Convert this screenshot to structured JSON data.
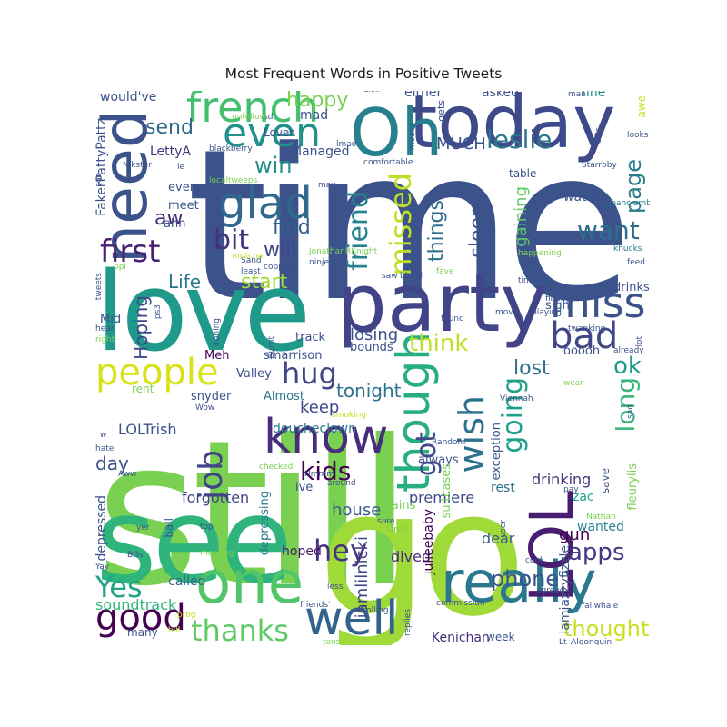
{
  "chart_data": {
    "type": "wordcloud",
    "title": "Most Frequent Words in Positive Tweets",
    "colormap": "viridis",
    "words": [
      {
        "text": "time",
        "color": "#3b528b"
      },
      {
        "text": "still",
        "color": "#7ad151"
      },
      {
        "text": "go",
        "color": "#a0da39"
      },
      {
        "text": "see",
        "color": "#2fb47c"
      },
      {
        "text": "love",
        "color": "#1f9a8a"
      },
      {
        "text": "party",
        "color": "#414487"
      },
      {
        "text": "today",
        "color": "#3e4a89"
      },
      {
        "text": "Oh",
        "color": "#27808e"
      },
      {
        "text": "need",
        "color": "#3b528b"
      },
      {
        "text": "one",
        "color": "#52c569"
      },
      {
        "text": "really",
        "color": "#2a788e"
      },
      {
        "text": "well",
        "color": "#33638d"
      },
      {
        "text": "LOL",
        "color": "#481f70"
      },
      {
        "text": "know",
        "color": "#472d7b"
      },
      {
        "text": "though",
        "color": "#27ad81"
      },
      {
        "text": "french",
        "color": "#44bf70"
      },
      {
        "text": "glad",
        "color": "#31688e"
      },
      {
        "text": "even",
        "color": "#21918c"
      },
      {
        "text": "people",
        "color": "#d8e219"
      },
      {
        "text": "miss",
        "color": "#3b528b"
      },
      {
        "text": "bad",
        "color": "#404688"
      },
      {
        "text": "first",
        "color": "#482173"
      },
      {
        "text": "good",
        "color": "#440154"
      },
      {
        "text": "job",
        "color": "#414487"
      },
      {
        "text": "wish",
        "color": "#2c728e"
      },
      {
        "text": "hug",
        "color": "#404688"
      },
      {
        "text": "thanks",
        "color": "#5ec962"
      },
      {
        "text": "Yes",
        "color": "#20a386"
      },
      {
        "text": "hey",
        "color": "#46327e"
      },
      {
        "text": "got",
        "color": "#3e4989"
      },
      {
        "text": "going",
        "color": "#1fa088"
      },
      {
        "text": "bit",
        "color": "#46307e"
      },
      {
        "text": "missed",
        "color": "#bddf26"
      },
      {
        "text": "friend",
        "color": "#26828e"
      },
      {
        "text": "think",
        "color": "#bddf26"
      },
      {
        "text": "kids",
        "color": "#440154"
      },
      {
        "text": "leslie",
        "color": "#2a788e"
      },
      {
        "text": "want",
        "color": "#2e6f8e"
      },
      {
        "text": "long",
        "color": "#35b779"
      },
      {
        "text": "apps",
        "color": "#443a83"
      },
      {
        "text": "ok",
        "color": "#1e9c89"
      },
      {
        "text": "phone",
        "color": "#3b528b"
      },
      {
        "text": "thought",
        "color": "#c8e020"
      },
      {
        "text": "page",
        "color": "#287d8e"
      },
      {
        "text": "happy",
        "color": "#7ad151"
      },
      {
        "text": "win",
        "color": "#21918c"
      },
      {
        "text": "things",
        "color": "#2e6e8e"
      },
      {
        "text": "sleep",
        "color": "#3a538b"
      },
      {
        "text": "will",
        "color": "#3f4788"
      },
      {
        "text": "find",
        "color": "#355e8d"
      },
      {
        "text": "start",
        "color": "#a0da39"
      },
      {
        "text": "send",
        "color": "#31688e"
      },
      {
        "text": "aw",
        "color": "#472d7b"
      },
      {
        "text": "Hoping",
        "color": "#3e4989"
      },
      {
        "text": "MUCH",
        "color": "#3b528b"
      },
      {
        "text": "lost",
        "color": "#2d708e"
      },
      {
        "text": "tonight",
        "color": "#2c728e"
      },
      {
        "text": "day",
        "color": "#3b528b"
      },
      {
        "text": "Life",
        "color": "#2a788e"
      },
      {
        "text": "gaining",
        "color": "#5ec962"
      },
      {
        "text": "losing",
        "color": "#3b528b"
      },
      {
        "text": "keep",
        "color": "#3e4a89"
      },
      {
        "text": "house",
        "color": "#355e8d"
      },
      {
        "text": "soundtrack",
        "color": "#2fb47c"
      },
      {
        "text": "forgotten",
        "color": "#414487"
      },
      {
        "text": "LOLTrish",
        "color": "#3b528b"
      },
      {
        "text": "gun",
        "color": "#440154"
      },
      {
        "text": "iamlilnicki",
        "color": "#404688"
      },
      {
        "text": "dived",
        "color": "#472d7b"
      },
      {
        "text": "dear",
        "color": "#35608d"
      },
      {
        "text": "hoped",
        "color": "#481b6d"
      },
      {
        "text": "Kenichan",
        "color": "#46307e"
      },
      {
        "text": "called",
        "color": "#33638d"
      },
      {
        "text": "rest",
        "color": "#2d708e"
      },
      {
        "text": "drinking",
        "color": "#46337f"
      },
      {
        "text": "premiere",
        "color": "#3e4a89"
      },
      {
        "text": "wanted",
        "color": "#25848e"
      },
      {
        "text": "zac",
        "color": "#20a486"
      },
      {
        "text": "watch",
        "color": "#3b528b"
      },
      {
        "text": "would've",
        "color": "#3b528b"
      },
      {
        "text": "either",
        "color": "#3b528b"
      },
      {
        "text": "asked",
        "color": "#3b528b"
      },
      {
        "text": "fine",
        "color": "#21918c"
      },
      {
        "text": "mad",
        "color": "#3b528b"
      },
      {
        "text": "Managed",
        "color": "#3b528b"
      },
      {
        "text": "Lover.",
        "color": "#3b528b"
      },
      {
        "text": "LettyA",
        "color": "#46337f"
      },
      {
        "text": "FakerPattyPattz",
        "color": "#3b528b"
      },
      {
        "text": "every",
        "color": "#3b528b"
      },
      {
        "text": "meet",
        "color": "#3b528b"
      },
      {
        "text": "ahh",
        "color": "#3b528b"
      },
      {
        "text": "Mid",
        "color": "#3b528b"
      },
      {
        "text": "Meh",
        "color": "#440154"
      },
      {
        "text": "Valley",
        "color": "#3b528b"
      },
      {
        "text": "smarrison",
        "color": "#3b528b"
      },
      {
        "text": "bounds",
        "color": "#3b528b"
      },
      {
        "text": "track",
        "color": "#3b528b"
      },
      {
        "text": "snyder",
        "color": "#3b528b"
      },
      {
        "text": "Almost",
        "color": "#2a788e"
      },
      {
        "text": "doucheclown",
        "color": "#2a788e"
      },
      {
        "text": "ive",
        "color": "#3b528b"
      },
      {
        "text": "always",
        "color": "#3b528b"
      },
      {
        "text": "exception",
        "color": "#3b528b"
      },
      {
        "text": "suitcases",
        "color": "#7ad151"
      },
      {
        "text": "julieebaby",
        "color": "#440154"
      },
      {
        "text": "Rains",
        "color": "#7ad151"
      },
      {
        "text": "depressed",
        "color": "#3b528b"
      },
      {
        "text": "depressing",
        "color": "#2a788e"
      },
      {
        "text": "iamjazzyfizzle",
        "color": "#3b528b"
      },
      {
        "text": "fleurylis",
        "color": "#7ad151"
      },
      {
        "text": "drinks",
        "color": "#3b528b"
      },
      {
        "text": "sigh",
        "color": "#3b528b"
      },
      {
        "text": "ooooh",
        "color": "#3b528b"
      },
      {
        "text": "save",
        "color": "#3b528b"
      },
      {
        "text": "week",
        "color": "#3b528b"
      },
      {
        "text": "many",
        "color": "#3b528b"
      },
      {
        "text": "ball",
        "color": "#3b528b"
      },
      {
        "text": "rent",
        "color": "#7ad151"
      },
      {
        "text": "gets",
        "color": "#3b528b"
      },
      {
        "text": "table",
        "color": "#3b528b"
      },
      {
        "text": "awe",
        "color": "#c8e020"
      },
      {
        "text": "alllll",
        "color": "#3b528b"
      },
      {
        "text": "sd",
        "color": "#3b528b"
      },
      {
        "text": "unfollow",
        "color": "#7ad151"
      },
      {
        "text": "lmao",
        "color": "#3b528b"
      },
      {
        "text": "means",
        "color": "#3b528b"
      },
      {
        "text": "man",
        "color": "#3b528b"
      },
      {
        "text": "looks",
        "color": "#3b528b"
      },
      {
        "text": "Nikster",
        "color": "#3b528b"
      },
      {
        "text": "comfortable",
        "color": "#3b528b"
      },
      {
        "text": "Starrbby",
        "color": "#3b528b"
      },
      {
        "text": "jeancjumbe",
        "color": "#2a788e"
      },
      {
        "text": "khucks",
        "color": "#2a788e"
      },
      {
        "text": "happening",
        "color": "#7ad151"
      },
      {
        "text": "feed",
        "color": "#3b528b"
      },
      {
        "text": "blackberry",
        "color": "#3b528b"
      },
      {
        "text": "localtweeps",
        "color": "#7ad151"
      },
      {
        "text": "may",
        "color": "#3b528b"
      },
      {
        "text": "soo",
        "color": "#3b528b"
      },
      {
        "text": "copped",
        "color": "#3b528b"
      },
      {
        "text": "JonathanRKnight",
        "color": "#7ad151"
      },
      {
        "text": "ninjen",
        "color": "#3b528b"
      },
      {
        "text": "Sand",
        "color": "#3b528b"
      },
      {
        "text": "least",
        "color": "#3b528b"
      },
      {
        "text": "saw",
        "color": "#3b528b"
      },
      {
        "text": "blood",
        "color": "#3b528b"
      },
      {
        "text": "fave",
        "color": "#7ad151"
      },
      {
        "text": "timeline",
        "color": "#3b528b"
      },
      {
        "text": "finally",
        "color": "#3b528b"
      },
      {
        "text": "tweets",
        "color": "#3b528b"
      },
      {
        "text": "ps3",
        "color": "#3b528b"
      },
      {
        "text": "hear",
        "color": "#3b528b"
      },
      {
        "text": "right",
        "color": "#7ad151"
      },
      {
        "text": "ironing",
        "color": "#3b528b"
      },
      {
        "text": "Burnt",
        "color": "#3b528b"
      },
      {
        "text": "found",
        "color": "#3b528b"
      },
      {
        "text": "move",
        "color": "#3b528b"
      },
      {
        "text": "playing",
        "color": "#3b528b"
      },
      {
        "text": "twanking",
        "color": "#3b528b"
      },
      {
        "text": "already",
        "color": "#3b528b"
      },
      {
        "text": "lot",
        "color": "#3b528b"
      },
      {
        "text": "wear",
        "color": "#7ad151"
      },
      {
        "text": "sad",
        "color": "#3b528b"
      },
      {
        "text": "Wow",
        "color": "#3b528b"
      },
      {
        "text": "hate",
        "color": "#3b528b"
      },
      {
        "text": "Aww",
        "color": "#3b528b"
      },
      {
        "text": "Random",
        "color": "#3b528b"
      },
      {
        "text": "Viennah",
        "color": "#3b528b"
      },
      {
        "text": "checked",
        "color": "#7ad151"
      },
      {
        "text": "Hmmm",
        "color": "#3b528b"
      },
      {
        "text": "around",
        "color": "#3b528b"
      },
      {
        "text": "pay",
        "color": "#3b528b"
      },
      {
        "text": "top",
        "color": "#3b528b"
      },
      {
        "text": "yer",
        "color": "#3b528b"
      },
      {
        "text": "user",
        "color": "#3b528b"
      },
      {
        "text": "BGs",
        "color": "#3b528b"
      },
      {
        "text": "meeting",
        "color": "#7ad151"
      },
      {
        "text": "Yay",
        "color": "#3b528b"
      },
      {
        "text": "sure",
        "color": "#3b528b"
      },
      {
        "text": "Jared",
        "color": "#7ad151"
      },
      {
        "text": "cool",
        "color": "#3b528b"
      },
      {
        "text": "less",
        "color": "#3b528b"
      },
      {
        "text": "friends'",
        "color": "#3b528b"
      },
      {
        "text": "agreed",
        "color": "#3b528b"
      },
      {
        "text": "commission",
        "color": "#3b528b"
      },
      {
        "text": "failwhale",
        "color": "#3b528b"
      },
      {
        "text": "replies",
        "color": "#3b528b"
      },
      {
        "text": "tons",
        "color": "#7ad151"
      },
      {
        "text": "Lt_Algonquin",
        "color": "#3b528b"
      },
      {
        "text": "bill",
        "color": "#c8e020"
      },
      {
        "text": "scrolling",
        "color": "#3b528b"
      },
      {
        "text": "smoking",
        "color": "#c8e020"
      },
      {
        "text": "mutcha",
        "color": "#c8e020"
      },
      {
        "text": "Nathan",
        "color": "#7ad151"
      },
      {
        "text": "prog",
        "color": "#c8e020"
      },
      {
        "text": "ppl",
        "color": "#7ad151"
      },
      {
        "text": "w",
        "color": "#3b528b"
      },
      {
        "text": "UDs",
        "color": "#3b528b"
      },
      {
        "text": "le",
        "color": "#3b528b"
      }
    ]
  }
}
